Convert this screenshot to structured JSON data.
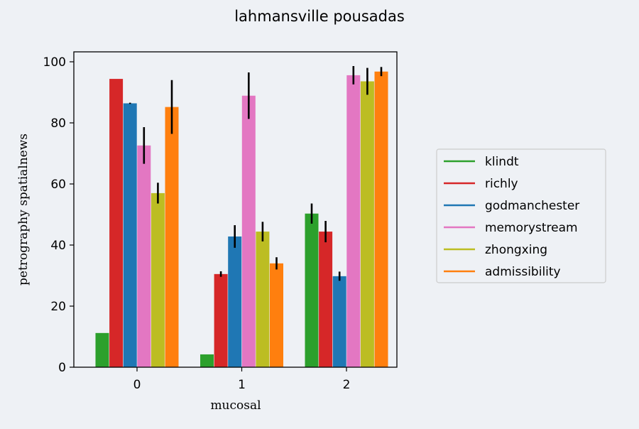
{
  "chart_data": {
    "type": "bar",
    "title": "lahmansville pousadas",
    "xlabel": "mucosal",
    "ylabel": "petrography spatialnews",
    "categories": [
      "0",
      "1",
      "2"
    ],
    "ylim": [
      0,
      100
    ],
    "yticks": [
      0,
      20,
      40,
      60,
      80,
      100
    ],
    "legend_position": "right",
    "series": [
      {
        "name": "klindt",
        "color": "#2ca02c",
        "values": [
          11.2,
          4.2,
          50.3
        ],
        "errors": [
          0,
          0,
          3.3
        ]
      },
      {
        "name": "richly",
        "color": "#d62728",
        "values": [
          94.4,
          30.5,
          44.4
        ],
        "errors": [
          0,
          0.9,
          3.5
        ]
      },
      {
        "name": "godmanchester",
        "color": "#1f77b4",
        "values": [
          86.4,
          42.8,
          29.8
        ],
        "errors": [
          0.2,
          3.7,
          1.5
        ]
      },
      {
        "name": "memorystream",
        "color": "#e377c2",
        "values": [
          72.6,
          88.9,
          95.6
        ],
        "errors": [
          6.0,
          7.6,
          3.0
        ]
      },
      {
        "name": "zhongxing",
        "color": "#bcbd22",
        "values": [
          57.0,
          44.4,
          93.6
        ],
        "errors": [
          3.4,
          3.2,
          4.4
        ]
      },
      {
        "name": "admissibility",
        "color": "#ff7f0e",
        "values": [
          85.2,
          34.0,
          96.8
        ],
        "errors": [
          8.8,
          2.0,
          1.5
        ]
      }
    ]
  }
}
